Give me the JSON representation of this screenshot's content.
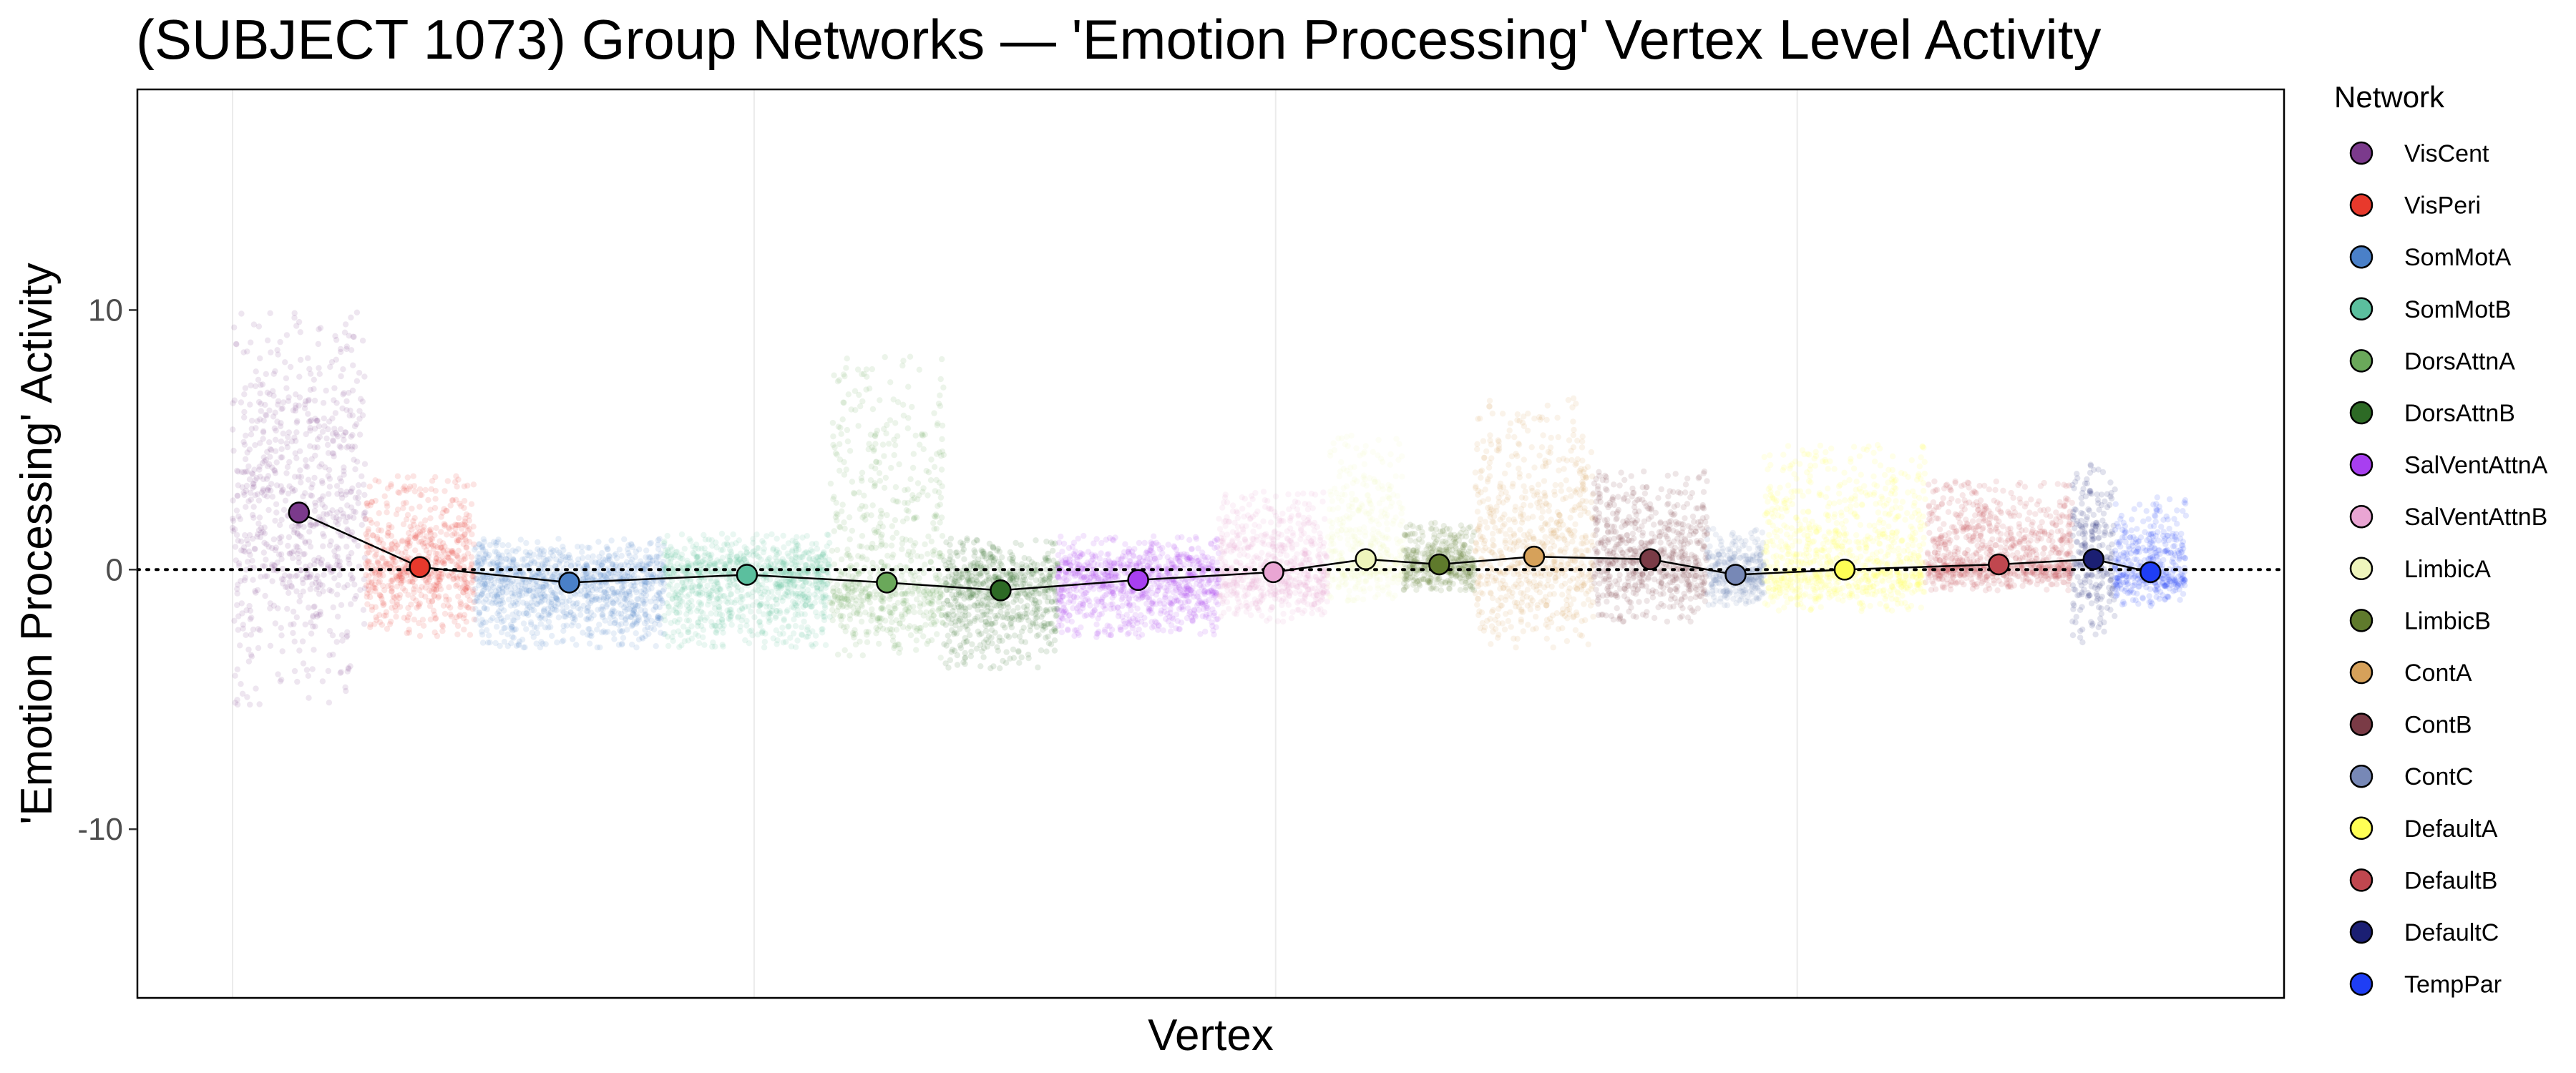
{
  "chart_data": {
    "type": "scatter",
    "title": "(SUBJECT 1073) Group Networks — 'Emotion Processing' Vertex Level Activity",
    "xlabel": "Vertex",
    "ylabel": "'Emotion Processing' Activity",
    "ylim": [
      -16.5,
      18.5
    ],
    "yticks": [
      -10,
      0,
      10
    ],
    "ytick_labels": [
      "-10",
      "0",
      "10"
    ],
    "reference_line": 0,
    "x_gridlines_at_vertex": [
      0,
      5500,
      11000,
      16500
    ],
    "legend": {
      "title": "Network",
      "placement": "right"
    },
    "networks": [
      {
        "name": "VisCent",
        "color": "#7b3a8c",
        "vertex_start": 0,
        "vertex_end": 1400,
        "mean": 2.2,
        "spread_low": -5.2,
        "spread_high": 10.0
      },
      {
        "name": "VisPeri",
        "color": "#e8392c",
        "vertex_start": 1400,
        "vertex_end": 2550,
        "mean": 0.1,
        "spread_low": -2.6,
        "spread_high": 3.6
      },
      {
        "name": "SomMotA",
        "color": "#4a80c8",
        "vertex_start": 2550,
        "vertex_end": 4550,
        "mean": -0.5,
        "spread_low": -3.0,
        "spread_high": 1.2
      },
      {
        "name": "SomMotB",
        "color": "#5bbf9e",
        "vertex_start": 4550,
        "vertex_end": 6300,
        "mean": -0.2,
        "spread_low": -3.0,
        "spread_high": 1.4
      },
      {
        "name": "DorsAttnA",
        "color": "#6aa85a",
        "vertex_start": 6300,
        "vertex_end": 7500,
        "mean": -0.5,
        "spread_low": -3.4,
        "spread_high": 8.2
      },
      {
        "name": "DorsAttnB",
        "color": "#2d6a25",
        "vertex_start": 7500,
        "vertex_end": 8700,
        "mean": -0.8,
        "spread_low": -3.8,
        "spread_high": 1.2
      },
      {
        "name": "SalVentAttnA",
        "color": "#a83ff0",
        "vertex_start": 8700,
        "vertex_end": 10400,
        "mean": -0.4,
        "spread_low": -2.6,
        "spread_high": 1.3
      },
      {
        "name": "SalVentAttnB",
        "color": "#e9a5d3",
        "vertex_start": 10400,
        "vertex_end": 11550,
        "mean": -0.1,
        "spread_low": -2.0,
        "spread_high": 3.0
      },
      {
        "name": "LimbicA",
        "color": "#eef5bc",
        "vertex_start": 11550,
        "vertex_end": 12350,
        "mean": 0.4,
        "spread_low": -1.2,
        "spread_high": 5.2
      },
      {
        "name": "LimbicB",
        "color": "#5f7a2c",
        "vertex_start": 12350,
        "vertex_end": 13100,
        "mean": 0.2,
        "spread_low": -0.8,
        "spread_high": 1.8
      },
      {
        "name": "ContA",
        "color": "#d6a15a",
        "vertex_start": 13100,
        "vertex_end": 14350,
        "mean": 0.5,
        "spread_low": -3.0,
        "spread_high": 6.6
      },
      {
        "name": "ContB",
        "color": "#7a3b46",
        "vertex_start": 14350,
        "vertex_end": 15550,
        "mean": 0.4,
        "spread_low": -2.0,
        "spread_high": 3.8
      },
      {
        "name": "ContC",
        "color": "#7788b6",
        "vertex_start": 15550,
        "vertex_end": 16150,
        "mean": -0.2,
        "spread_low": -1.4,
        "spread_high": 1.6
      },
      {
        "name": "DefaultA",
        "color": "#ffff55",
        "vertex_start": 16150,
        "vertex_end": 17850,
        "mean": 0.0,
        "spread_low": -1.6,
        "spread_high": 4.8
      },
      {
        "name": "DefaultB",
        "color": "#c0474f",
        "vertex_start": 17850,
        "vertex_end": 19400,
        "mean": 0.2,
        "spread_low": -0.8,
        "spread_high": 3.4
      },
      {
        "name": "DefaultC",
        "color": "#1b1f73",
        "vertex_start": 19400,
        "vertex_end": 19850,
        "mean": 0.4,
        "spread_low": -2.8,
        "spread_high": 4.5
      },
      {
        "name": "TempPar",
        "color": "#1f3ef5",
        "vertex_start": 19850,
        "vertex_end": 20600,
        "mean": -0.1,
        "spread_low": -1.4,
        "spread_high": 2.8
      }
    ]
  }
}
